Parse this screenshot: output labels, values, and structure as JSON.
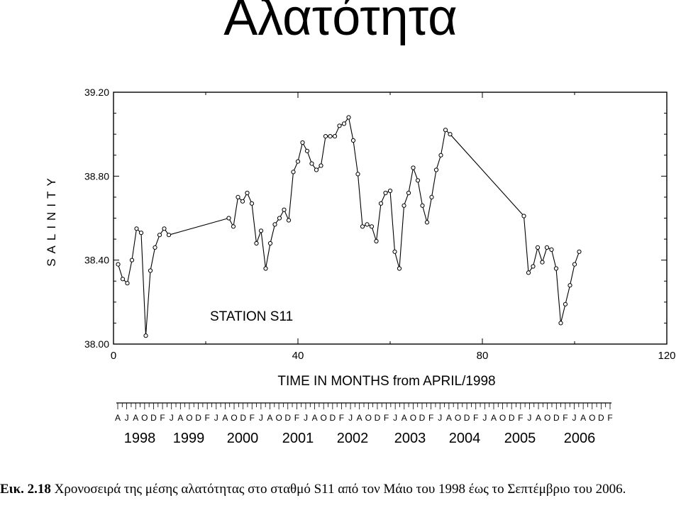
{
  "slide": {
    "title": "Αλατότητα"
  },
  "caption": {
    "label": "Εικ. 2.18",
    "text": " Χρονοσειρά της μέσης αλατότητας στο σταθμό S11 από τον Μάιο του 1998 έως το Σεπτέμβριο του 2006."
  },
  "chart_data": {
    "type": "line",
    "annotation": "STATION S11",
    "xlabel": "TIME IN MONTHS from APRIL/1998",
    "ylabel": "SALINITY",
    "xlim": [
      0,
      120
    ],
    "ylim": [
      38.0,
      39.2
    ],
    "x_ticks": [
      "0",
      "40",
      "80",
      "120"
    ],
    "y_ticks": [
      "38.00",
      "38.40",
      "38.80",
      "39.20"
    ],
    "month_letters": [
      "A",
      "J",
      "A",
      "O",
      "D",
      "F",
      "J",
      "A",
      "O",
      "D",
      "F",
      "J",
      "A",
      "O",
      "D",
      "F",
      "J",
      "A",
      "O",
      "D",
      "F",
      "J",
      "A",
      "O",
      "D",
      "F",
      "J",
      "A",
      "O",
      "D",
      "F",
      "J",
      "A",
      "O",
      "D",
      "F",
      "J",
      "A",
      "O",
      "D",
      "F",
      "J",
      "A",
      "O",
      "D",
      "F",
      "J",
      "A",
      "O",
      "D",
      "F",
      "J",
      "A",
      "O",
      "D",
      "F"
    ],
    "years": [
      "1998",
      "1999",
      "2000",
      "2001",
      "2002",
      "2003",
      "2004",
      "2005",
      "2006"
    ],
    "series": [
      {
        "x": [
          1,
          2,
          3,
          4,
          5,
          6,
          7,
          8,
          9,
          10,
          11,
          12,
          25,
          26,
          27,
          28,
          29,
          30,
          31,
          32,
          33,
          34,
          35,
          36,
          37,
          38,
          39,
          40,
          41,
          42,
          43,
          44,
          45,
          46,
          47,
          48,
          49,
          50,
          51,
          52,
          53,
          54,
          55,
          56,
          57,
          58,
          59,
          60,
          61,
          62,
          63,
          64,
          65,
          66,
          67,
          68,
          69,
          70,
          71,
          72,
          73,
          89,
          90,
          91,
          92,
          93,
          94,
          95,
          96,
          97,
          98,
          99,
          100,
          101
        ],
        "values": [
          38.38,
          38.31,
          38.29,
          38.4,
          38.55,
          38.53,
          38.04,
          38.35,
          38.46,
          38.52,
          38.55,
          38.52,
          38.6,
          38.56,
          38.7,
          38.68,
          38.72,
          38.67,
          38.48,
          38.54,
          38.36,
          38.48,
          38.57,
          38.6,
          38.64,
          38.59,
          38.82,
          38.87,
          38.96,
          38.92,
          38.86,
          38.83,
          38.85,
          38.99,
          38.99,
          38.99,
          39.04,
          39.05,
          39.08,
          38.97,
          38.81,
          38.56,
          38.57,
          38.56,
          38.49,
          38.67,
          38.72,
          38.73,
          38.44,
          38.36,
          38.66,
          38.72,
          38.84,
          38.78,
          38.66,
          38.58,
          38.7,
          38.83,
          38.9,
          39.02,
          39.0,
          38.61,
          38.34,
          38.37,
          38.46,
          38.39,
          38.46,
          38.45,
          38.36,
          38.1,
          38.19,
          38.28,
          38.38,
          38.44
        ]
      }
    ]
  }
}
